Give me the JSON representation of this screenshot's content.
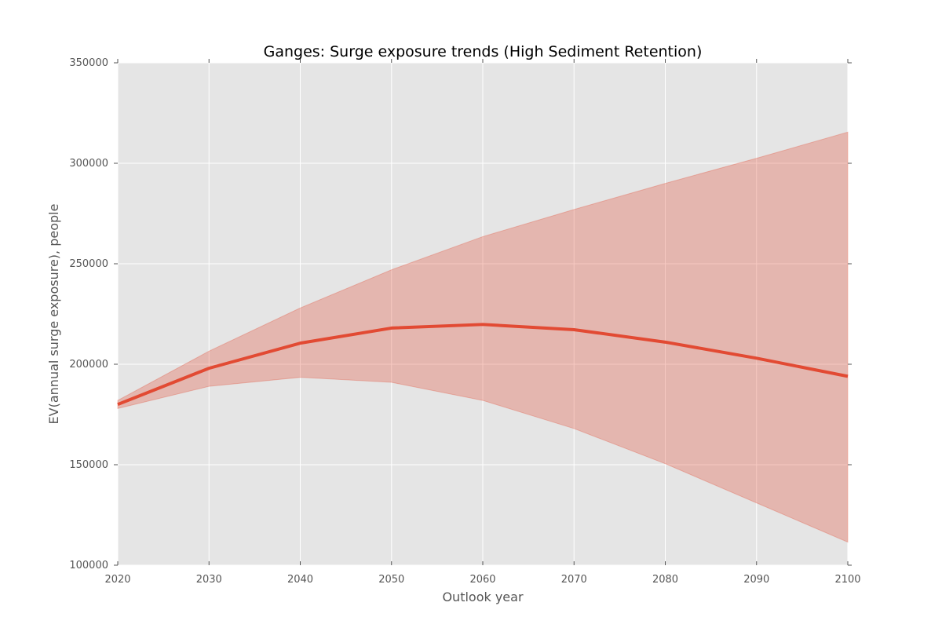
{
  "chart_data": {
    "type": "line",
    "title": "Ganges: Surge exposure trends (High Sediment Retention)",
    "xlabel": "Outlook year",
    "ylabel": "EV(annual surge exposure), people",
    "xlim": [
      2020,
      2100
    ],
    "ylim": [
      100000,
      350000
    ],
    "x_ticks": [
      "2020",
      "2030",
      "2040",
      "2050",
      "2060",
      "2070",
      "2080",
      "2090",
      "2100"
    ],
    "y_ticks": [
      "100000",
      "150000",
      "200000",
      "250000",
      "300000",
      "350000"
    ],
    "grid": true,
    "x": [
      2020,
      2030,
      2040,
      2050,
      2060,
      2070,
      2080,
      2090,
      2100
    ],
    "series": [
      {
        "values": [
          180000,
          198000,
          210500,
          218000,
          219800,
          217200,
          211000,
          203000,
          194000
        ],
        "lower": [
          178000,
          189000,
          193500,
          191000,
          182000,
          168000,
          150500,
          131000,
          111500
        ],
        "upper": [
          182000,
          206500,
          228000,
          247000,
          263500,
          277000,
          290000,
          302500,
          315500
        ],
        "color": "#E24A33",
        "band_color": "#E24A33"
      }
    ]
  }
}
